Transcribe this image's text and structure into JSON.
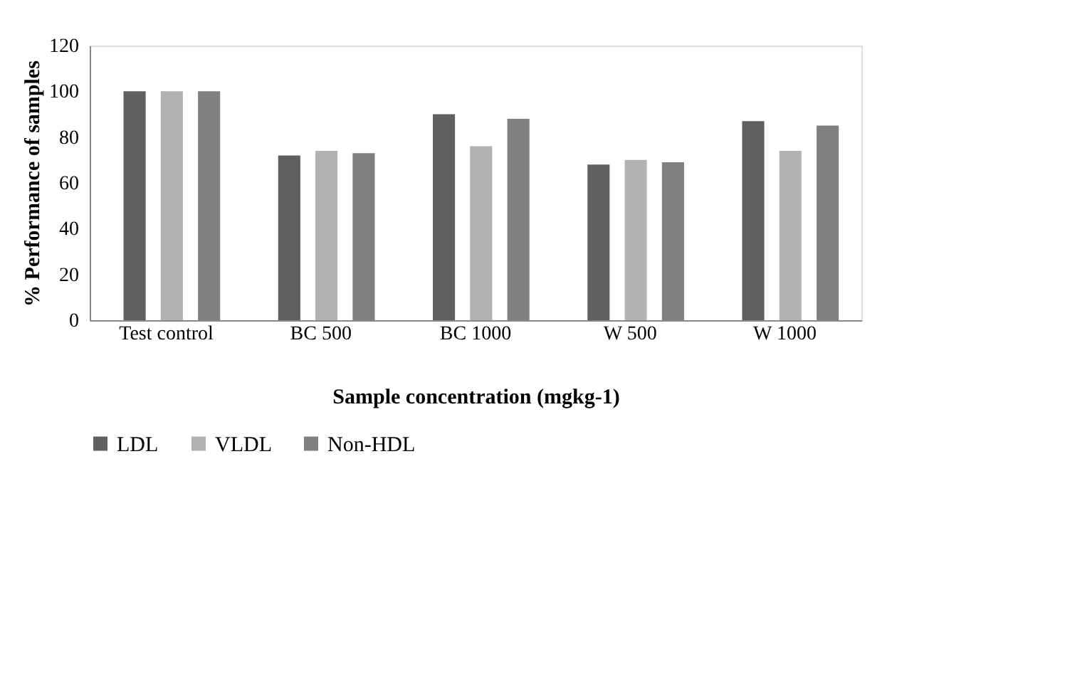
{
  "chart_data": {
    "type": "bar",
    "xlabel": "Sample concentration (mgkg-1)",
    "ylabel": "% Performance of samples",
    "categories": [
      "Test control",
      "BC 500",
      "BC 1000",
      "W 500",
      "W 1000"
    ],
    "series": [
      {
        "name": "LDL",
        "color": "#606060",
        "values": [
          100,
          72,
          90,
          68,
          87
        ]
      },
      {
        "name": "VLDL",
        "color": "#b2b2b2",
        "values": [
          100,
          74,
          76,
          70,
          74
        ]
      },
      {
        "name": "Non-HDL",
        "color": "#808080",
        "values": [
          100,
          73,
          88,
          69,
          85
        ]
      }
    ],
    "ylim": [
      0,
      120
    ],
    "yticks": [
      0,
      20,
      40,
      60,
      80,
      100,
      120
    ],
    "grid": false,
    "legend": "bottom"
  }
}
